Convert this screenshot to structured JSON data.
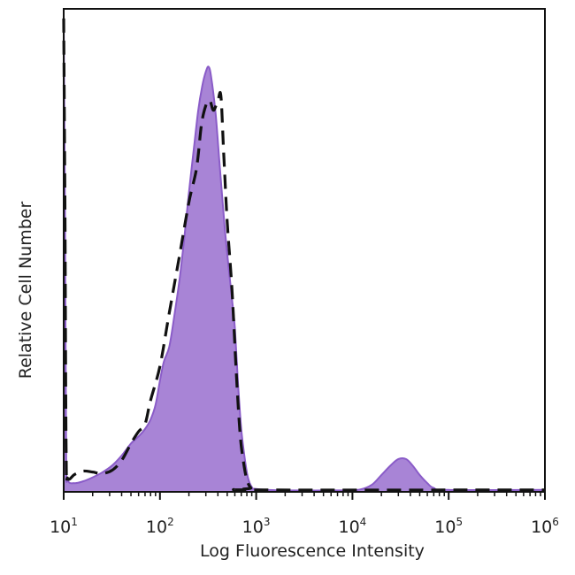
{
  "chart_data": {
    "type": "area",
    "title": "",
    "xlabel": "Log Fluorescence Intensity",
    "ylabel": "Relative Cell Number",
    "x_scale": "log",
    "xlim": [
      10,
      1000000
    ],
    "ylim": [
      0,
      100
    ],
    "x_ticks": [
      {
        "base": "10",
        "exp": "1",
        "value": 10
      },
      {
        "base": "10",
        "exp": "2",
        "value": 100
      },
      {
        "base": "10",
        "exp": "3",
        "value": 1000
      },
      {
        "base": "10",
        "exp": "4",
        "value": 10000
      },
      {
        "base": "10",
        "exp": "5",
        "value": 100000
      },
      {
        "base": "10",
        "exp": "6",
        "value": 1000000
      }
    ],
    "grid": false,
    "legend": false,
    "series": [
      {
        "style": "filled",
        "fill_color": "#a884d6",
        "line_color": "#8a5cc8",
        "points": [
          [
            10,
            98
          ],
          [
            10.3,
            60
          ],
          [
            10.6,
            8
          ],
          [
            11,
            2.5
          ],
          [
            13,
            1.8
          ],
          [
            16,
            2.2
          ],
          [
            20,
            3
          ],
          [
            25,
            4
          ],
          [
            32,
            5.5
          ],
          [
            40,
            7.5
          ],
          [
            50,
            10
          ],
          [
            60,
            11.5
          ],
          [
            70,
            13
          ],
          [
            80,
            15
          ],
          [
            90,
            18
          ],
          [
            100,
            23
          ],
          [
            110,
            27
          ],
          [
            125,
            30
          ],
          [
            140,
            36
          ],
          [
            160,
            44
          ],
          [
            180,
            53
          ],
          [
            200,
            62
          ],
          [
            225,
            71
          ],
          [
            250,
            79
          ],
          [
            275,
            84
          ],
          [
            300,
            87
          ],
          [
            320,
            88
          ],
          [
            340,
            86
          ],
          [
            380,
            78
          ],
          [
            420,
            67
          ],
          [
            470,
            55
          ],
          [
            520,
            46
          ],
          [
            560,
            40
          ],
          [
            600,
            34
          ],
          [
            650,
            22
          ],
          [
            700,
            13
          ],
          [
            760,
            7
          ],
          [
            820,
            3
          ],
          [
            900,
            1
          ],
          [
            1000,
            0.6
          ],
          [
            2000,
            0.3
          ],
          [
            8000,
            0.3
          ],
          [
            12000,
            0.5
          ],
          [
            16000,
            1.5
          ],
          [
            20000,
            3.5
          ],
          [
            25000,
            5.5
          ],
          [
            30000,
            6.8
          ],
          [
            36000,
            6.8
          ],
          [
            42000,
            5.5
          ],
          [
            50000,
            3.5
          ],
          [
            60000,
            1.8
          ],
          [
            70000,
            0.8
          ],
          [
            100000,
            0.4
          ],
          [
            1000000,
            0.4
          ]
        ]
      },
      {
        "style": "dashed",
        "line_color": "#111111",
        "points": [
          [
            10,
            98
          ],
          [
            10.3,
            60
          ],
          [
            10.6,
            8
          ],
          [
            11,
            2.8
          ],
          [
            13,
            3.6
          ],
          [
            16,
            4.3
          ],
          [
            20,
            4.1
          ],
          [
            25,
            3.8
          ],
          [
            32,
            4.5
          ],
          [
            40,
            6.5
          ],
          [
            50,
            10
          ],
          [
            60,
            12.5
          ],
          [
            70,
            14
          ],
          [
            80,
            19
          ],
          [
            100,
            26
          ],
          [
            125,
            37
          ],
          [
            160,
            49
          ],
          [
            200,
            60
          ],
          [
            240,
            67
          ],
          [
            270,
            76
          ],
          [
            300,
            80
          ],
          [
            330,
            81
          ],
          [
            360,
            79
          ],
          [
            400,
            81
          ],
          [
            430,
            82
          ],
          [
            460,
            70
          ],
          [
            500,
            56
          ],
          [
            560,
            42
          ],
          [
            620,
            25
          ],
          [
            680,
            12
          ],
          [
            740,
            6
          ],
          [
            800,
            2.5
          ],
          [
            880,
            0.8
          ],
          [
            1000,
            0.4
          ],
          [
            1000000,
            0.4
          ]
        ]
      }
    ]
  }
}
